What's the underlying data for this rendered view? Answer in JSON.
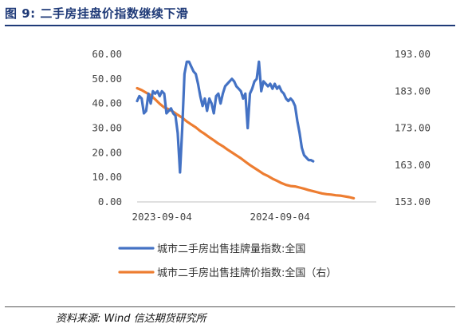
{
  "header": {
    "title": "图 9:  二手房挂盘价指数继续下滑"
  },
  "footer": {
    "source": "资料来源:    Wind  信达期货研究所"
  },
  "chart_data": {
    "type": "line",
    "x_ticks": [
      "2023-09-04",
      "2024-09-04"
    ],
    "y_left": {
      "ticks": [
        "0.00",
        "10.00",
        "20.00",
        "30.00",
        "40.00",
        "50.00",
        "60.00"
      ],
      "ylim": [
        0,
        60
      ]
    },
    "y_right": {
      "ticks": [
        "153.00",
        "163.00",
        "173.00",
        "183.00",
        "193.00"
      ],
      "ylim": [
        153,
        193
      ]
    },
    "xlim": [
      "2023-06-19",
      "2025-06-30"
    ],
    "grid": false,
    "legend_position": "bottom",
    "series": [
      {
        "name": "城市二手房出售挂牌量指数:全国",
        "axis": "left",
        "color": "#4472c4",
        "points": [
          [
            "2023-06-19",
            41
          ],
          [
            "2023-06-26",
            43
          ],
          [
            "2023-07-03",
            42
          ],
          [
            "2023-07-10",
            36
          ],
          [
            "2023-07-17",
            37
          ],
          [
            "2023-07-24",
            44
          ],
          [
            "2023-07-31",
            40
          ],
          [
            "2023-08-07",
            45
          ],
          [
            "2023-08-14",
            44
          ],
          [
            "2023-08-21",
            45
          ],
          [
            "2023-08-28",
            43
          ],
          [
            "2023-09-04",
            45
          ],
          [
            "2023-09-11",
            44
          ],
          [
            "2023-09-18",
            36
          ],
          [
            "2023-09-25",
            37
          ],
          [
            "2023-10-02",
            38
          ],
          [
            "2023-10-09",
            36
          ],
          [
            "2023-10-16",
            35
          ],
          [
            "2023-10-23",
            28
          ],
          [
            "2023-10-30",
            12
          ],
          [
            "2023-11-06",
            30
          ],
          [
            "2023-11-13",
            52
          ],
          [
            "2023-11-20",
            57
          ],
          [
            "2023-11-27",
            57
          ],
          [
            "2023-12-04",
            55
          ],
          [
            "2023-12-11",
            53
          ],
          [
            "2023-12-18",
            52
          ],
          [
            "2023-12-25",
            48
          ],
          [
            "2024-01-01",
            43
          ],
          [
            "2024-01-08",
            39
          ],
          [
            "2024-01-15",
            42
          ],
          [
            "2024-01-22",
            37
          ],
          [
            "2024-01-29",
            42
          ],
          [
            "2024-02-05",
            40
          ],
          [
            "2024-02-12",
            36
          ],
          [
            "2024-02-19",
            43
          ],
          [
            "2024-02-26",
            44
          ],
          [
            "2024-03-04",
            40
          ],
          [
            "2024-03-11",
            44
          ],
          [
            "2024-03-18",
            47
          ],
          [
            "2024-03-25",
            48
          ],
          [
            "2024-04-01",
            49
          ],
          [
            "2024-04-08",
            50
          ],
          [
            "2024-04-15",
            49
          ],
          [
            "2024-04-22",
            47
          ],
          [
            "2024-04-29",
            46
          ],
          [
            "2024-05-06",
            45
          ],
          [
            "2024-05-13",
            42
          ],
          [
            "2024-05-20",
            44
          ],
          [
            "2024-05-27",
            30
          ],
          [
            "2024-06-03",
            44
          ],
          [
            "2024-06-10",
            46
          ],
          [
            "2024-06-17",
            49
          ],
          [
            "2024-06-24",
            50
          ],
          [
            "2024-07-01",
            57
          ],
          [
            "2024-07-08",
            45
          ],
          [
            "2024-07-15",
            49
          ],
          [
            "2024-07-22",
            48
          ],
          [
            "2024-07-29",
            47
          ],
          [
            "2024-08-05",
            48
          ],
          [
            "2024-08-12",
            46
          ],
          [
            "2024-08-19",
            48
          ],
          [
            "2024-08-26",
            46
          ],
          [
            "2024-09-02",
            47
          ],
          [
            "2024-09-09",
            45
          ],
          [
            "2024-09-16",
            44
          ],
          [
            "2024-09-23",
            42
          ],
          [
            "2024-09-30",
            41
          ],
          [
            "2024-10-07",
            42
          ],
          [
            "2024-10-14",
            41
          ],
          [
            "2024-10-21",
            39
          ],
          [
            "2024-10-28",
            33
          ],
          [
            "2024-11-04",
            28
          ],
          [
            "2024-11-11",
            22
          ],
          [
            "2024-11-18",
            19
          ],
          [
            "2024-11-25",
            18
          ],
          [
            "2024-12-02",
            17
          ],
          [
            "2024-12-09",
            17
          ],
          [
            "2024-12-16",
            16.5
          ]
        ]
      },
      {
        "name": "城市二手房出售挂牌价指数:全国（右）",
        "axis": "right",
        "color": "#ed7d31",
        "points": [
          [
            "2023-06-19",
            183.8
          ],
          [
            "2023-07-03",
            183.3
          ],
          [
            "2023-07-17",
            182.6
          ],
          [
            "2023-07-31",
            181.9
          ],
          [
            "2023-08-14",
            180.8
          ],
          [
            "2023-08-28",
            179.6
          ],
          [
            "2023-09-11",
            178.6
          ],
          [
            "2023-09-25",
            178.1
          ],
          [
            "2023-10-09",
            177.4
          ],
          [
            "2023-10-23",
            176.6
          ],
          [
            "2023-11-06",
            175.8
          ],
          [
            "2023-11-20",
            174.8
          ],
          [
            "2023-12-04",
            174.0
          ],
          [
            "2023-12-18",
            173.2
          ],
          [
            "2024-01-01",
            172.2
          ],
          [
            "2024-01-15",
            171.4
          ],
          [
            "2024-01-29",
            170.5
          ],
          [
            "2024-02-12",
            169.7
          ],
          [
            "2024-02-26",
            168.8
          ],
          [
            "2024-03-11",
            168.1
          ],
          [
            "2024-03-25",
            167.2
          ],
          [
            "2024-04-08",
            166.4
          ],
          [
            "2024-04-22",
            165.6
          ],
          [
            "2024-05-06",
            164.8
          ],
          [
            "2024-05-20",
            163.9
          ],
          [
            "2024-06-03",
            163.0
          ],
          [
            "2024-06-17",
            162.2
          ],
          [
            "2024-07-01",
            161.4
          ],
          [
            "2024-07-15",
            160.6
          ],
          [
            "2024-07-29",
            160.0
          ],
          [
            "2024-08-12",
            159.3
          ],
          [
            "2024-08-26",
            158.7
          ],
          [
            "2024-09-09",
            158.1
          ],
          [
            "2024-09-23",
            157.6
          ],
          [
            "2024-10-07",
            157.3
          ],
          [
            "2024-10-21",
            157.2
          ],
          [
            "2024-11-04",
            156.9
          ],
          [
            "2024-11-18",
            156.6
          ],
          [
            "2024-12-02",
            156.2
          ],
          [
            "2024-12-16",
            155.9
          ],
          [
            "2024-12-30",
            155.6
          ],
          [
            "2025-01-13",
            155.3
          ],
          [
            "2025-01-27",
            155.1
          ],
          [
            "2025-02-10",
            155.0
          ],
          [
            "2025-02-24",
            154.8
          ],
          [
            "2025-03-10",
            154.7
          ],
          [
            "2025-03-24",
            154.5
          ],
          [
            "2025-04-07",
            154.3
          ],
          [
            "2025-04-21",
            154.0
          ]
        ]
      }
    ]
  }
}
